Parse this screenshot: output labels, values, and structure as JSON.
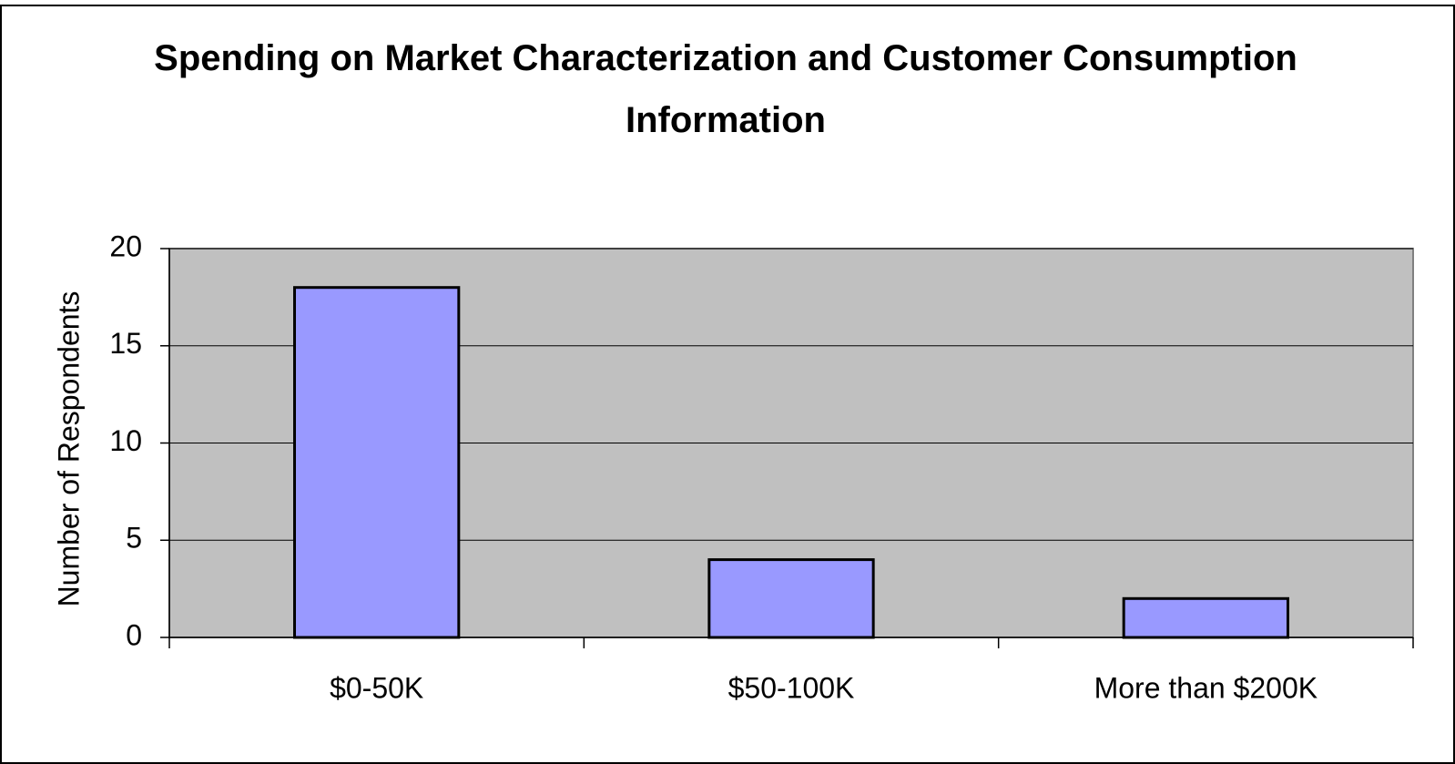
{
  "chart_data": {
    "type": "bar",
    "title": "Spending on Market Characterization and Customer Consumption Information",
    "y_label": "Number of Respondents",
    "categories": [
      "$0-50K",
      "$50-100K",
      "More than $200K"
    ],
    "values": [
      18,
      4,
      2
    ],
    "color": "#9999ff",
    "ylim": [
      0,
      20
    ],
    "yticks": [
      0,
      5,
      10,
      15,
      20
    ],
    "grid": true
  }
}
